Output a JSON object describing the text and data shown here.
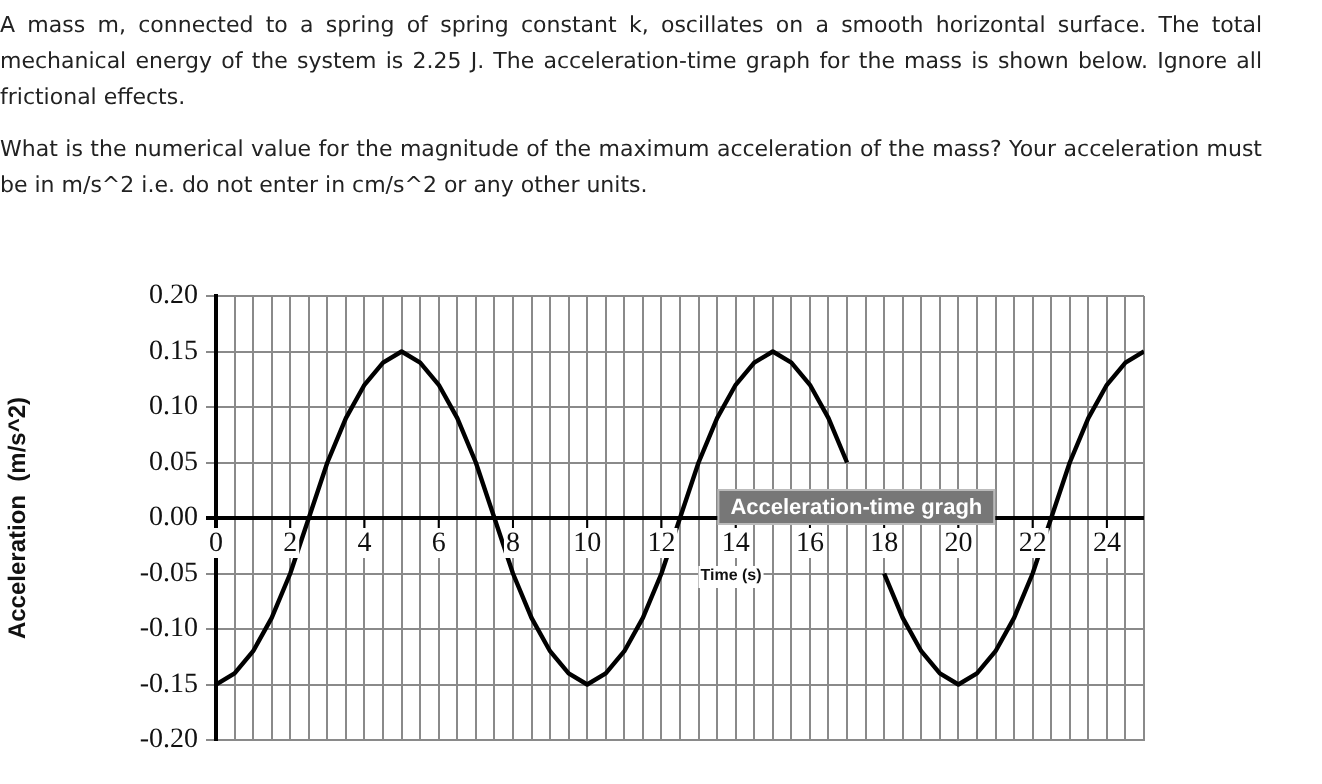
{
  "chart_data": {
    "type": "line",
    "title": "Acceleration-time gragh",
    "xlabel": "Time (s)",
    "ylabel": "Acceleration  (m/s^2)",
    "annotations": [
      "A mass m, connected to a spring of spring constant k, oscillates on a smooth horizontal surface. The total mechanical energy of the system is 2.25 J. The acceleration-time graph for the mass is shown below. Ignore all frictional effects.",
      "What is the numerical value for the magnitude of the maximum acceleration of the mass? Your acceleration must be in m/s^2 i.e. do not enter in cm/s^2 or any other units."
    ],
    "x": [
      0,
      0.5,
      1,
      1.5,
      2,
      2.5,
      3,
      3.5,
      4,
      4.5,
      5,
      5.5,
      6,
      6.5,
      7,
      7.5,
      8,
      8.5,
      9,
      9.5,
      10,
      10.5,
      11,
      11.5,
      12,
      12.5,
      13,
      13.5,
      14,
      14.5,
      15,
      15.5,
      16,
      16.5,
      17,
      17.5,
      18,
      18.5,
      19,
      19.5,
      20,
      20.5,
      21,
      21.5,
      22,
      22.5,
      23,
      23.5,
      24,
      24.5,
      25
    ],
    "series": [
      {
        "color": "#000000",
        "values": [
          -0.15,
          -0.14,
          -0.12,
          -0.09,
          -0.05,
          0,
          0.05,
          0.09,
          0.12,
          0.14,
          0.15,
          0.14,
          0.12,
          0.09,
          0.05,
          0,
          -0.05,
          -0.09,
          -0.12,
          -0.14,
          -0.15,
          -0.14,
          -0.12,
          -0.09,
          -0.05,
          0,
          0.05,
          0.09,
          0.12,
          0.14,
          0.15,
          0.14,
          0.12,
          0.09,
          0.05,
          null,
          -0.05,
          -0.09,
          -0.12,
          -0.14,
          -0.15,
          -0.14,
          -0.12,
          -0.09,
          -0.05,
          0,
          0.05,
          0.09,
          0.12,
          0.14,
          0.15
        ]
      }
    ],
    "xlim": [
      0,
      25
    ],
    "xticks": [
      0,
      {
        "value": 0.5,
        "label": null
      },
      {
        "value": 1,
        "label": null
      },
      {
        "value": 1.5,
        "label": null
      },
      2,
      {
        "value": 2.5,
        "label": null
      },
      {
        "value": 3,
        "label": null
      },
      {
        "value": 3.5,
        "label": null
      },
      4,
      {
        "value": 4.5,
        "label": null
      },
      {
        "value": 5,
        "label": null
      },
      {
        "value": 5.5,
        "label": null
      },
      6,
      {
        "value": 6.5,
        "label": null
      },
      {
        "value": 7,
        "label": null
      },
      {
        "value": 7.5,
        "label": null
      },
      8,
      {
        "value": 8.5,
        "label": null
      },
      {
        "value": 9,
        "label": null
      },
      {
        "value": 9.5,
        "label": null
      },
      10,
      {
        "value": 10.5,
        "label": null
      },
      {
        "value": 11,
        "label": null
      },
      {
        "value": 11.5,
        "label": null
      },
      12,
      {
        "value": 12.5,
        "label": null
      },
      {
        "value": 13,
        "label": null
      },
      {
        "value": 13.5,
        "label": null
      },
      14,
      {
        "value": 14.5,
        "label": null
      },
      {
        "value": 15,
        "label": null
      },
      {
        "value": 15.5,
        "label": null
      },
      16,
      {
        "value": 16.5,
        "label": null
      },
      {
        "value": 17,
        "label": null
      },
      {
        "value": 17.5,
        "label": null
      },
      18,
      {
        "value": 18.5,
        "label": null
      },
      {
        "value": 19,
        "label": null
      },
      {
        "value": 19.5,
        "label": null
      },
      20,
      {
        "value": 20.5,
        "label": null
      },
      {
        "value": 21,
        "label": null
      },
      {
        "value": 21.5,
        "label": null
      },
      22,
      {
        "value": 22.5,
        "label": null
      },
      {
        "value": 23,
        "label": null
      },
      {
        "value": 23.5,
        "label": null
      },
      24,
      {
        "value": 24.5,
        "label": null
      },
      {
        "value": 25,
        "label": null
      }
    ],
    "ylim": [
      -0.2,
      0.2
    ],
    "yticks": [
      {
        "value": -0.2,
        "label": "-0.20"
      },
      {
        "value": -0.15,
        "label": "-0.15"
      },
      {
        "value": -0.1,
        "label": "-0.10"
      },
      {
        "value": -0.05,
        "label": "-0.05"
      },
      {
        "value": 0,
        "label": "0.00"
      },
      {
        "value": 0.05,
        "label": "0.05"
      },
      {
        "value": 0.1,
        "label": "0.10"
      },
      {
        "value": 0.15,
        "label": "0.15"
      },
      {
        "value": 0.2,
        "label": "0.20"
      }
    ],
    "grid": true,
    "marker": "none",
    "line_style": "solid",
    "legend": false
  }
}
